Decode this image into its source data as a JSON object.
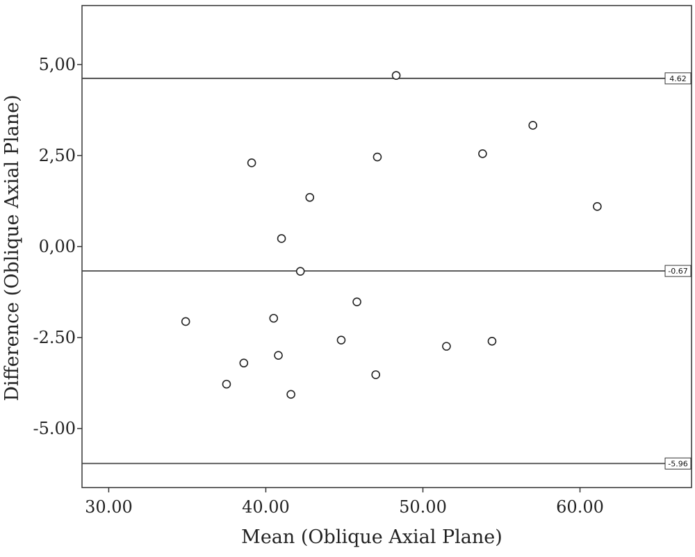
{
  "chart_data": {
    "type": "scatter",
    "xlabel": "Mean (Oblique Axial Plane)",
    "ylabel": "Difference (Oblique Axial Plane)",
    "xlim": [
      28.3,
      67.1
    ],
    "ylim": [
      -6.62,
      6.62
    ],
    "x_ticks": [
      30,
      40,
      50,
      60
    ],
    "x_tick_labels": [
      "30.00",
      "40.00",
      "50.00",
      "60.00"
    ],
    "y_ticks": [
      5,
      2.5,
      0,
      -2.5,
      -5
    ],
    "y_tick_labels": [
      "5,00",
      "2,50",
      "0,00",
      "-2.50",
      "-5.00"
    ],
    "grid": false,
    "reference_lines": [
      {
        "y": 4.62,
        "label": "4.62"
      },
      {
        "y": -0.67,
        "label": "-0.67"
      },
      {
        "y": -5.96,
        "label": "-5.96"
      }
    ],
    "points": [
      {
        "x": 48.3,
        "y": 4.7
      },
      {
        "x": 57.0,
        "y": 3.33
      },
      {
        "x": 53.8,
        "y": 2.55
      },
      {
        "x": 47.1,
        "y": 2.46
      },
      {
        "x": 39.1,
        "y": 2.3
      },
      {
        "x": 42.8,
        "y": 1.35
      },
      {
        "x": 61.1,
        "y": 1.1
      },
      {
        "x": 41.0,
        "y": 0.22
      },
      {
        "x": 42.2,
        "y": -0.68
      },
      {
        "x": 45.8,
        "y": -1.52
      },
      {
        "x": 40.5,
        "y": -1.97
      },
      {
        "x": 34.9,
        "y": -2.06
      },
      {
        "x": 44.8,
        "y": -2.57
      },
      {
        "x": 54.4,
        "y": -2.6
      },
      {
        "x": 51.5,
        "y": -2.74
      },
      {
        "x": 40.8,
        "y": -2.99
      },
      {
        "x": 38.6,
        "y": -3.2
      },
      {
        "x": 47.0,
        "y": -3.52
      },
      {
        "x": 37.5,
        "y": -3.78
      },
      {
        "x": 41.6,
        "y": -4.06
      }
    ]
  }
}
